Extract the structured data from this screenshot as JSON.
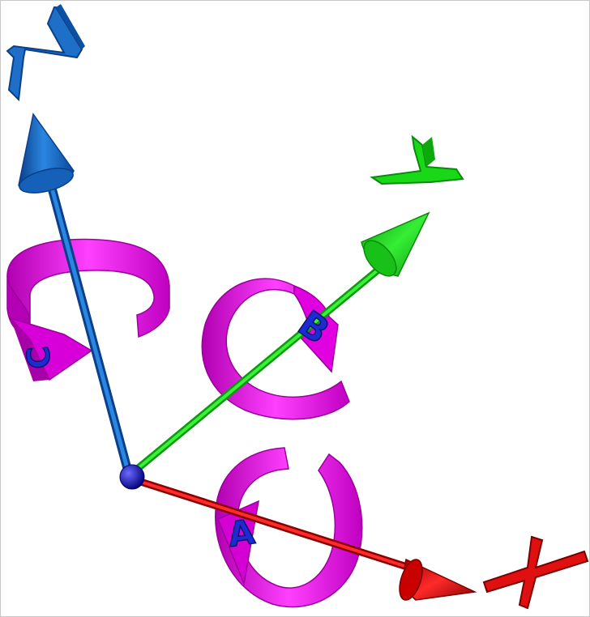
{
  "colors": {
    "background": "#ffffff",
    "x_axis": "#e01010",
    "y_axis": "#18d818",
    "z_axis": "#1e6fc8",
    "rotation": "#e000e0",
    "rotation_letter": "#1c2cd0",
    "origin": "#1010c0"
  },
  "axes": {
    "x": {
      "label": "X"
    },
    "y": {
      "label": "Y"
    },
    "z": {
      "label": "Z"
    }
  },
  "rotations": {
    "a": {
      "label": "A"
    },
    "b": {
      "label": "B"
    },
    "c": {
      "label": "C"
    }
  }
}
